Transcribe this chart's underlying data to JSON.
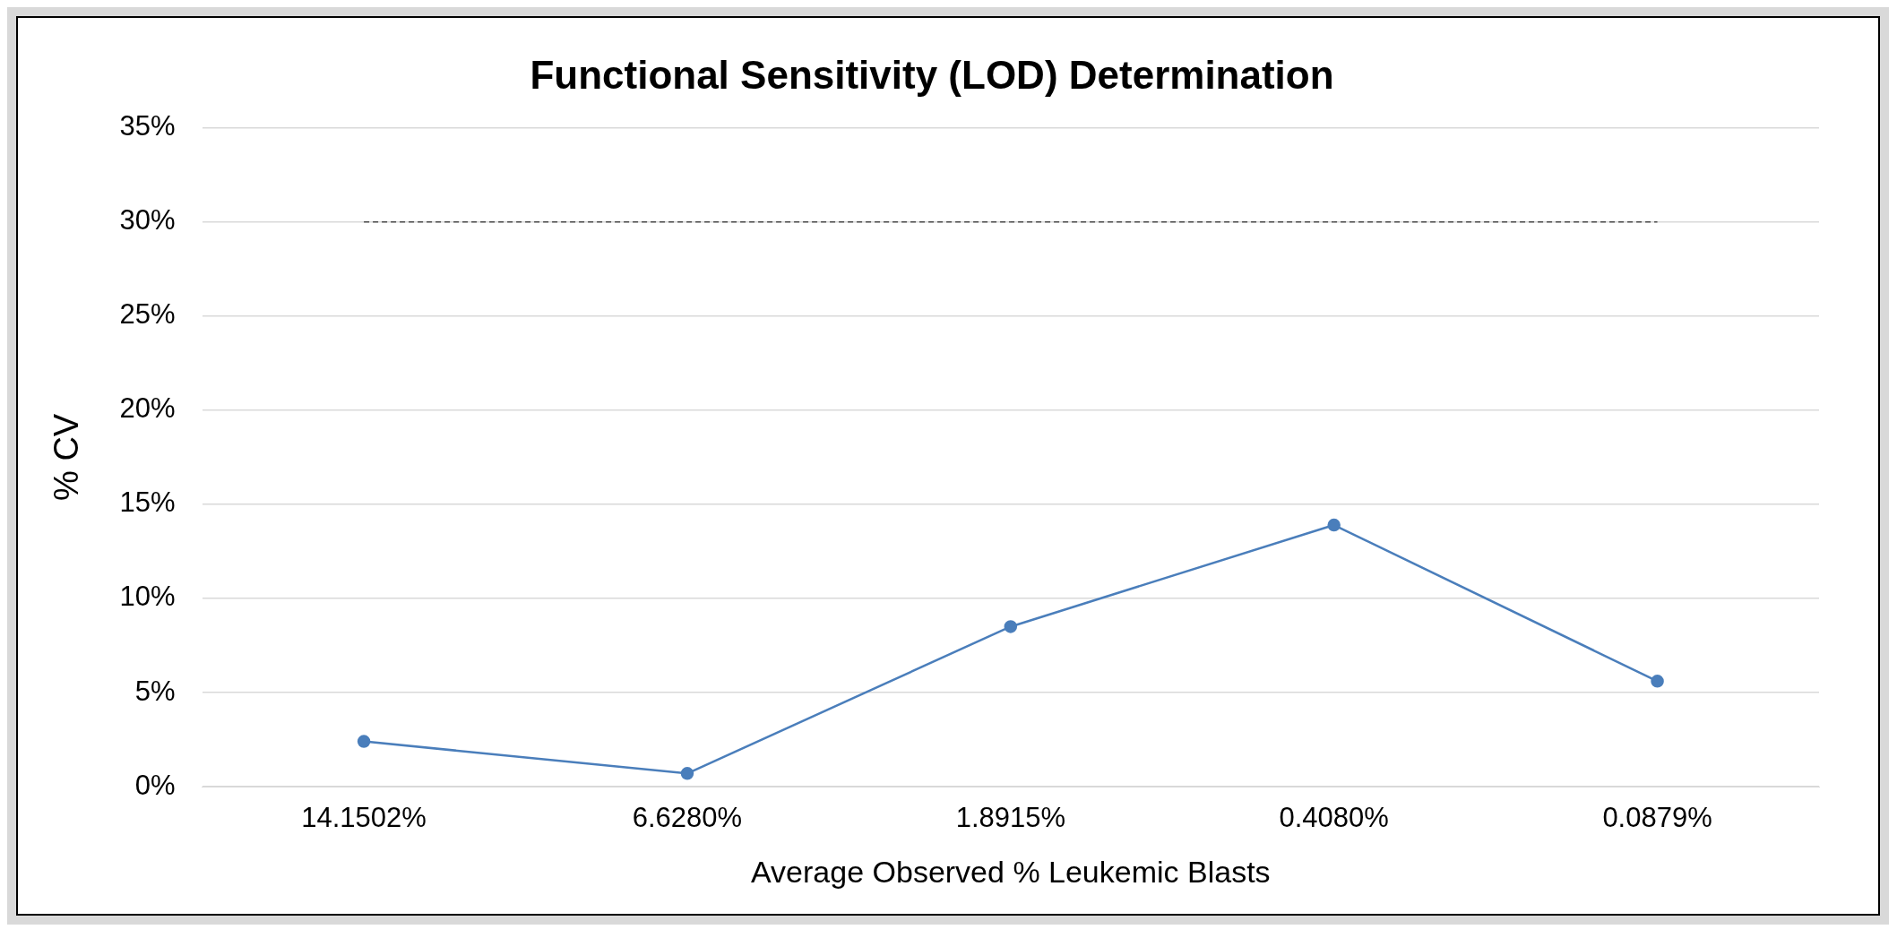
{
  "chart_data": {
    "type": "line",
    "title": "Functional Sensitivity (LOD) Determination",
    "xlabel": "Average Observed % Leukemic Blasts",
    "ylabel": "% CV",
    "categories": [
      "14.1502%",
      "6.6280%",
      "1.8915%",
      "0.4080%",
      "0.0879%"
    ],
    "series": [
      {
        "color": "#4a7ebb",
        "values": [
          2.4,
          0.7,
          8.5,
          13.9,
          5.6
        ],
        "marker": "circle",
        "line_style": "solid"
      },
      {
        "color": "#000000",
        "values": [
          30,
          30,
          30,
          30,
          30
        ],
        "marker": "none",
        "line_style": "dashed"
      }
    ],
    "ylim": [
      0,
      35
    ],
    "yticks": [
      {
        "value": 0,
        "label": "0%"
      },
      {
        "value": 5,
        "label": "5%"
      },
      {
        "value": 10,
        "label": "10%"
      },
      {
        "value": 15,
        "label": "15%"
      },
      {
        "value": 20,
        "label": "20%"
      },
      {
        "value": 25,
        "label": "25%"
      },
      {
        "value": 30,
        "label": "30%"
      },
      {
        "value": 35,
        "label": "35%"
      }
    ],
    "grid": "y",
    "legend": false
  }
}
